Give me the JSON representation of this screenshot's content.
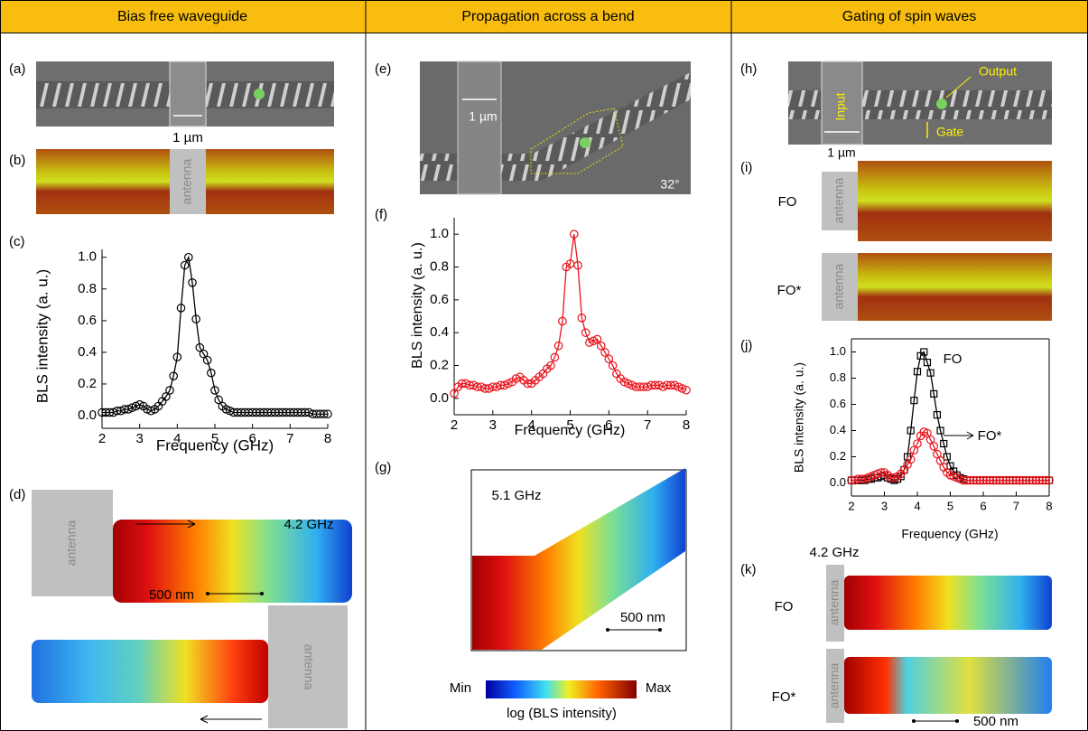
{
  "headers": [
    "Bias free waveguide",
    "Propagation across a bend",
    "Gating of spin waves"
  ],
  "panels": {
    "a": {
      "label": "(a)",
      "scale": "1 µm"
    },
    "b": {
      "label": "(b)",
      "antenna": "antenna"
    },
    "c": {
      "label": "(c)"
    },
    "d": {
      "label": "(d)",
      "antenna_top": "antenna",
      "freq": "4.2 GHz",
      "scale": "500 nm",
      "antenna_bottom": "antenna"
    },
    "e": {
      "label": "(e)",
      "scale": "1 µm",
      "angle": "32°"
    },
    "f": {
      "label": "(f)"
    },
    "g": {
      "label": "(g)",
      "freq": "5.1 GHz",
      "scale": "500 nm",
      "min": "Min",
      "max": "Max",
      "colorbar_label": "log (BLS intensity)"
    },
    "h": {
      "label": "(h)",
      "output": "Output",
      "gate": "Gate",
      "input": "Input",
      "scale": "1 µm"
    },
    "i": {
      "label": "(i)",
      "row1": "FO",
      "antenna1": "antenna",
      "row2": "FO*",
      "antenna2": "antenna"
    },
    "j": {
      "label": "(j)"
    },
    "k": {
      "label": "(k)",
      "freq": "4.2 GHz",
      "row1": "FO",
      "antenna1": "antenna",
      "row2": "FO*",
      "antenna2": "antenna",
      "scale": "500 nm"
    }
  },
  "chart_data": [
    {
      "type": "line",
      "xlabel": "Frequency (GHz)",
      "ylabel": "BLS intensity (a. u.)",
      "xlim": [
        2,
        8
      ],
      "ylim": [
        -0.08,
        1.05
      ],
      "xticks": [
        2,
        3,
        4,
        5,
        6,
        7,
        8
      ],
      "yticks": [
        {
          "value": 0,
          "label": "0.0"
        },
        0.2,
        0.4,
        0.6,
        0.8,
        {
          "value": 1,
          "label": "1.0"
        }
      ],
      "box": false,
      "x": [
        2,
        2.1,
        2.2,
        2.3,
        2.4,
        2.5,
        2.6,
        2.7,
        2.8,
        2.9,
        3,
        3.1,
        3.2,
        3.3,
        3.4,
        3.5,
        3.6,
        3.7,
        3.8,
        3.9,
        4,
        4.1,
        4.2,
        4.3,
        4.4,
        4.5,
        4.6,
        4.7,
        4.8,
        4.9,
        5,
        5.1,
        5.2,
        5.3,
        5.4,
        5.5,
        5.6,
        5.7,
        5.8,
        5.9,
        6,
        6.1,
        6.2,
        6.3,
        6.4,
        6.5,
        6.6,
        6.7,
        6.8,
        6.9,
        7,
        7.1,
        7.2,
        7.3,
        7.4,
        7.5,
        7.6,
        7.7,
        7.8,
        7.9,
        8
      ],
      "series": [
        {
          "color": "#000000",
          "marker": "circle",
          "values": [
            0.02,
            0.02,
            0.02,
            0.02,
            0.03,
            0.03,
            0.04,
            0.04,
            0.05,
            0.06,
            0.07,
            0.06,
            0.04,
            0.03,
            0.04,
            0.06,
            0.09,
            0.12,
            0.16,
            0.25,
            0.37,
            0.68,
            0.95,
            1.0,
            0.84,
            0.61,
            0.43,
            0.39,
            0.35,
            0.27,
            0.16,
            0.1,
            0.06,
            0.04,
            0.03,
            0.02,
            0.02,
            0.02,
            0.02,
            0.02,
            0.02,
            0.02,
            0.02,
            0.02,
            0.02,
            0.02,
            0.02,
            0.02,
            0.02,
            0.02,
            0.02,
            0.02,
            0.02,
            0.02,
            0.02,
            0.02,
            0.01,
            0.01,
            0.01,
            0.01,
            0.01
          ]
        }
      ]
    },
    {
      "type": "line",
      "xlabel": "Frequency (GHz)",
      "ylabel": "BLS intensity (a. u.)",
      "xlim": [
        2,
        8
      ],
      "ylim": [
        -0.1,
        1.1
      ],
      "xticks": [
        2,
        3,
        4,
        5,
        6,
        7,
        8
      ],
      "yticks": [
        {
          "value": 0,
          "label": "0.0"
        },
        0.2,
        0.4,
        0.6,
        0.8,
        {
          "value": 1,
          "label": "1.0"
        }
      ],
      "box": false,
      "x": [
        2,
        2.1,
        2.2,
        2.3,
        2.4,
        2.5,
        2.6,
        2.7,
        2.8,
        2.9,
        3,
        3.1,
        3.2,
        3.3,
        3.4,
        3.5,
        3.6,
        3.7,
        3.8,
        3.9,
        4,
        4.1,
        4.2,
        4.3,
        4.4,
        4.5,
        4.6,
        4.7,
        4.8,
        4.9,
        5,
        5.1,
        5.2,
        5.3,
        5.4,
        5.5,
        5.6,
        5.7,
        5.8,
        5.9,
        6,
        6.1,
        6.2,
        6.3,
        6.4,
        6.5,
        6.6,
        6.7,
        6.8,
        6.9,
        7,
        7.1,
        7.2,
        7.3,
        7.4,
        7.5,
        7.6,
        7.7,
        7.8,
        7.9,
        8
      ],
      "series": [
        {
          "color": "#e8141c",
          "marker": "circle",
          "values": [
            0.03,
            0.07,
            0.09,
            0.09,
            0.08,
            0.08,
            0.07,
            0.07,
            0.06,
            0.06,
            0.07,
            0.07,
            0.08,
            0.08,
            0.09,
            0.1,
            0.12,
            0.13,
            0.11,
            0.09,
            0.09,
            0.11,
            0.13,
            0.15,
            0.18,
            0.2,
            0.25,
            0.32,
            0.47,
            0.8,
            0.82,
            1.0,
            0.81,
            0.49,
            0.4,
            0.34,
            0.35,
            0.36,
            0.32,
            0.28,
            0.24,
            0.2,
            0.15,
            0.12,
            0.1,
            0.09,
            0.08,
            0.07,
            0.07,
            0.07,
            0.07,
            0.08,
            0.08,
            0.08,
            0.07,
            0.08,
            0.08,
            0.08,
            0.07,
            0.06,
            0.05
          ]
        }
      ]
    },
    {
      "type": "line",
      "xlabel": "Frequency (GHz)",
      "ylabel": "BLS intensity (a. u.)",
      "xlim": [
        2,
        8
      ],
      "ylim": [
        -0.1,
        1.1
      ],
      "xticks": [
        2,
        3,
        4,
        5,
        6,
        7,
        8
      ],
      "yticks": [
        {
          "value": 0,
          "label": "0.0"
        },
        0.2,
        0.4,
        0.6,
        0.8,
        {
          "value": 1,
          "label": "1.0"
        }
      ],
      "box": true,
      "x": [
        2,
        2.1,
        2.2,
        2.3,
        2.4,
        2.5,
        2.6,
        2.7,
        2.8,
        2.9,
        3,
        3.1,
        3.2,
        3.3,
        3.4,
        3.5,
        3.6,
        3.7,
        3.8,
        3.9,
        4,
        4.1,
        4.2,
        4.3,
        4.4,
        4.5,
        4.6,
        4.7,
        4.8,
        4.9,
        5,
        5.1,
        5.2,
        5.3,
        5.4,
        5.5,
        5.6,
        5.7,
        5.8,
        5.9,
        6,
        6.1,
        6.2,
        6.3,
        6.4,
        6.5,
        6.6,
        6.7,
        6.8,
        6.9,
        7,
        7.1,
        7.2,
        7.3,
        7.4,
        7.5,
        7.6,
        7.7,
        7.8,
        7.9,
        8
      ],
      "series": [
        {
          "name": "FO",
          "color": "#000000",
          "marker": "square",
          "values": [
            0.02,
            0.02,
            0.02,
            0.02,
            0.02,
            0.03,
            0.03,
            0.04,
            0.04,
            0.05,
            0.06,
            0.04,
            0.03,
            0.02,
            0.03,
            0.05,
            0.1,
            0.2,
            0.4,
            0.63,
            0.85,
            0.97,
            1.0,
            0.92,
            0.84,
            0.68,
            0.52,
            0.4,
            0.3,
            0.2,
            0.13,
            0.09,
            0.06,
            0.04,
            0.03,
            0.02,
            0.02,
            0.02,
            0.02,
            0.02,
            0.02,
            0.02,
            0.02,
            0.02,
            0.02,
            0.02,
            0.02,
            0.02,
            0.02,
            0.02,
            0.02,
            0.02,
            0.02,
            0.02,
            0.02,
            0.02,
            0.02,
            0.02,
            0.02,
            0.02,
            0.02
          ]
        },
        {
          "name": "FO*",
          "color": "#e8141c",
          "marker": "circle",
          "values": [
            0.02,
            0.02,
            0.03,
            0.03,
            0.03,
            0.04,
            0.05,
            0.06,
            0.07,
            0.08,
            0.08,
            0.06,
            0.04,
            0.04,
            0.05,
            0.07,
            0.1,
            0.14,
            0.18,
            0.25,
            0.3,
            0.36,
            0.39,
            0.38,
            0.33,
            0.28,
            0.22,
            0.17,
            0.12,
            0.08,
            0.06,
            0.05,
            0.04,
            0.03,
            0.02,
            0.02,
            0.02,
            0.02,
            0.02,
            0.02,
            0.02,
            0.02,
            0.02,
            0.02,
            0.02,
            0.02,
            0.02,
            0.02,
            0.02,
            0.02,
            0.02,
            0.02,
            0.02,
            0.02,
            0.02,
            0.02,
            0.02,
            0.02,
            0.02,
            0.02,
            0.02
          ]
        }
      ]
    }
  ]
}
